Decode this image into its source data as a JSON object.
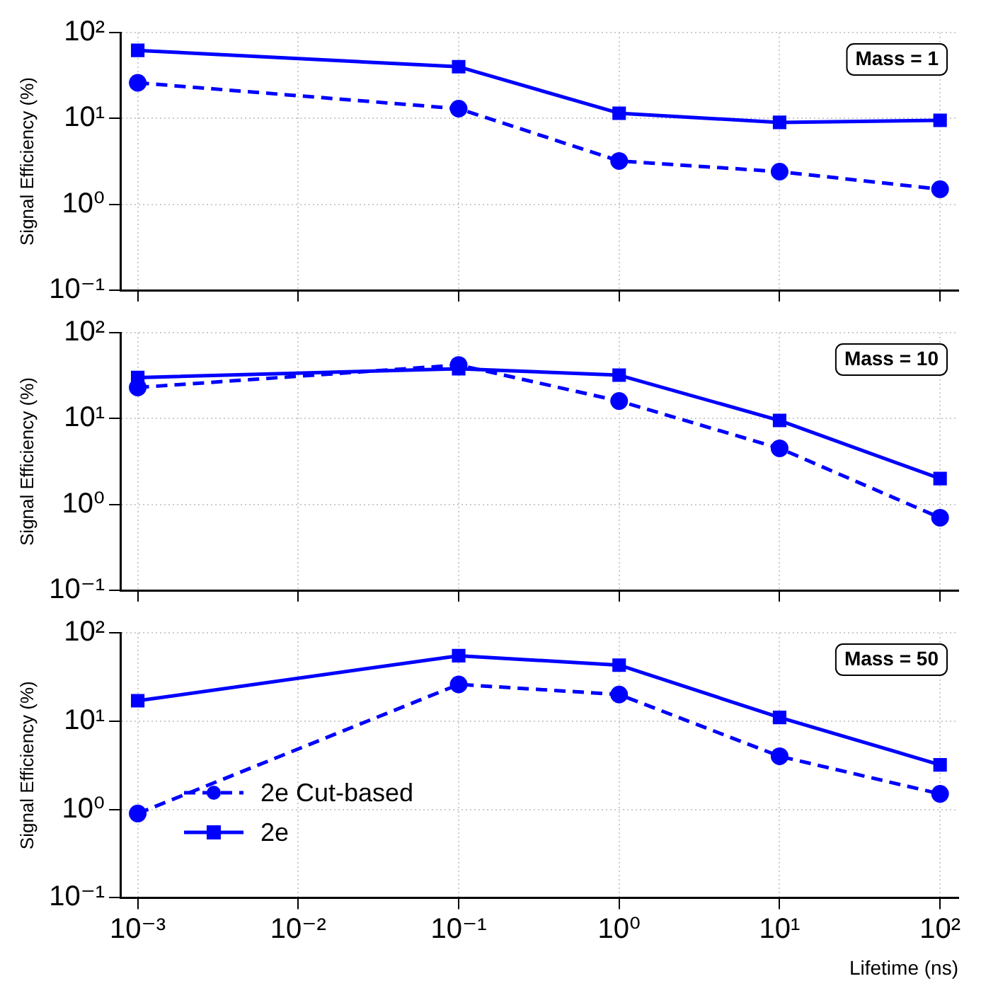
{
  "chart_data": [
    {
      "type": "line",
      "annotations": [
        "Mass = 1"
      ],
      "ylabel": "Signal Efficiency (%)",
      "x": [
        0.001,
        0.1,
        1,
        10,
        100
      ],
      "log": "xy",
      "grid": true,
      "tick_labels": "y",
      "legend": false,
      "xlim": [
        0.00078,
        130
      ],
      "ylim": [
        0.1,
        100
      ],
      "xticks": [
        {
          "value": 0.001,
          "label": null
        },
        {
          "value": 0.01,
          "label": null
        },
        {
          "value": 0.1,
          "label": null
        },
        {
          "value": 1,
          "label": null
        },
        {
          "value": 10,
          "label": null
        },
        {
          "value": 100,
          "label": null
        }
      ],
      "yticks": [
        {
          "value": 0.1,
          "label": "10⁻¹"
        },
        {
          "value": 1,
          "label": "10⁰"
        },
        {
          "value": 10,
          "label": "10¹"
        },
        {
          "value": 100,
          "label": "10²"
        }
      ],
      "series": [
        {
          "color": "#0000ff",
          "marker": "circle",
          "line_style": "dashed",
          "values": [
            26,
            13,
            3.2,
            2.4,
            1.5
          ]
        },
        {
          "color": "#0000ff",
          "marker": "square",
          "line_style": "solid",
          "values": [
            62,
            40,
            11.5,
            9,
            9.5
          ]
        }
      ]
    },
    {
      "type": "line",
      "annotations": [
        "Mass = 10"
      ],
      "ylabel": "Signal Efficiency (%)",
      "x": [
        0.001,
        0.1,
        1,
        10,
        100
      ],
      "log": "xy",
      "grid": true,
      "tick_labels": "y",
      "legend": false,
      "xlim": [
        0.00078,
        130
      ],
      "ylim": [
        0.1,
        100
      ],
      "xticks": [
        {
          "value": 0.001,
          "label": null
        },
        {
          "value": 0.01,
          "label": null
        },
        {
          "value": 0.1,
          "label": null
        },
        {
          "value": 1,
          "label": null
        },
        {
          "value": 10,
          "label": null
        },
        {
          "value": 100,
          "label": null
        }
      ],
      "yticks": [
        {
          "value": 0.1,
          "label": "10⁻¹"
        },
        {
          "value": 1,
          "label": "10⁰"
        },
        {
          "value": 10,
          "label": "10¹"
        },
        {
          "value": 100,
          "label": "10²"
        }
      ],
      "series": [
        {
          "color": "#0000ff",
          "marker": "circle",
          "line_style": "dashed",
          "values": [
            23,
            42,
            16,
            4.5,
            0.7
          ]
        },
        {
          "color": "#0000ff",
          "marker": "square",
          "line_style": "solid",
          "values": [
            30,
            38,
            32,
            9.5,
            2.0
          ]
        }
      ]
    },
    {
      "type": "line",
      "annotations": [
        "Mass = 50"
      ],
      "ylabel": "Signal Efficiency (%)",
      "xlabel": "Lifetime (ns)",
      "x": [
        0.001,
        0.1,
        1,
        10,
        100
      ],
      "log": "xy",
      "grid": true,
      "legend": "left",
      "xlim": [
        0.00078,
        130
      ],
      "ylim": [
        0.1,
        100
      ],
      "xticks": [
        {
          "value": 0.001,
          "label": "10⁻³"
        },
        {
          "value": 0.01,
          "label": "10⁻²"
        },
        {
          "value": 0.1,
          "label": "10⁻¹"
        },
        {
          "value": 1,
          "label": "10⁰"
        },
        {
          "value": 10,
          "label": "10¹"
        },
        {
          "value": 100,
          "label": "10²"
        }
      ],
      "yticks": [
        {
          "value": 0.1,
          "label": "10⁻¹"
        },
        {
          "value": 1,
          "label": "10⁰"
        },
        {
          "value": 10,
          "label": "10¹"
        },
        {
          "value": 100,
          "label": "10²"
        }
      ],
      "series": [
        {
          "name": "2e Cut-based",
          "color": "#0000ff",
          "marker": "circle",
          "line_style": "dashed",
          "values": [
            0.9,
            26,
            20,
            4,
            1.5
          ]
        },
        {
          "name": "2e",
          "color": "#0000ff",
          "marker": "square",
          "line_style": "solid",
          "values": [
            17,
            55,
            43,
            11,
            3.2
          ]
        }
      ]
    }
  ]
}
